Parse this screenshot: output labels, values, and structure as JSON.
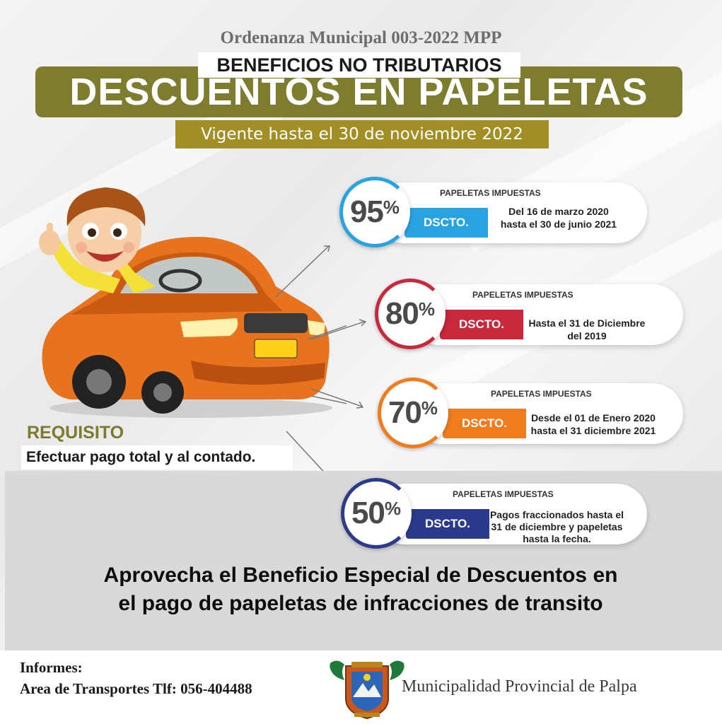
{
  "header": {
    "ordinance": "Ordenanza Municipal 003-2022 MPP",
    "subtitle": "BENEFICIOS NO TRIBUTARIOS",
    "title": "DESCUENTOS EN PAPELETAS",
    "validity": "Vigente hasta el 30 de noviembre 2022"
  },
  "discounts": [
    {
      "percent": "95",
      "percent_sign": "%",
      "tab": "DSCTO.",
      "heading": "PAPELETAS IMPUESTAS",
      "line1": "Del 16 de marzo 2020",
      "line2": "hasta el 30 de junio 2021",
      "line3": "",
      "color": "#29a3e0"
    },
    {
      "percent": "80",
      "percent_sign": "%",
      "tab": "DSCTO.",
      "heading": "PAPELETAS IMPUESTAS",
      "line1": "Hasta el 31 de Diciembre",
      "line2": "del 2019",
      "line3": "",
      "color": "#c8283c"
    },
    {
      "percent": "70",
      "percent_sign": "%",
      "tab": "DSCTO.",
      "heading": "PAPELETAS IMPUESTAS",
      "line1": "Desde el 01 de Enero 2020",
      "line2": "hasta el 31 diciembre 2021",
      "line3": "",
      "color": "#f07c1e"
    },
    {
      "percent": "50",
      "percent_sign": "%",
      "tab": "DSCTO.",
      "heading": "PAPELETAS IMPUESTAS",
      "line1": "Pagos fraccionados hasta el",
      "line2": "31 de diciembre y papeletas",
      "line3": "hasta la fecha.",
      "color": "#2c3a8c"
    }
  ],
  "requirement": {
    "title": "REQUISITO",
    "text": "Efectuar pago total y al contado."
  },
  "cta": {
    "line1": "Aprovecha el Beneficio Especial de Descuentos en",
    "line2": "el pago de papeletas de infracciones de transito"
  },
  "footer": {
    "info_label": "Informes:",
    "info_line": "Area de Transportes Tlf: 056-404488",
    "municipality": "Municipalidad Provincial de Palpa"
  },
  "colors": {
    "banner": "#7e7d2f",
    "validity": "#a18f25",
    "requirement": "#7b7a2d",
    "panel": "#d9d9d9"
  }
}
